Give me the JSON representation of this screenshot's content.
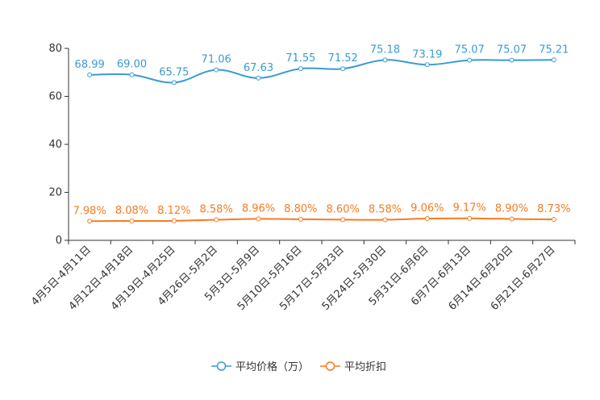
{
  "chart_data": {
    "type": "line",
    "title": "",
    "xlabel": "",
    "ylabel": "",
    "ylim": [
      0,
      80
    ],
    "yticks": [
      0,
      20,
      40,
      60,
      80
    ],
    "grid": false,
    "legend_position": "bottom-center",
    "categories": [
      "4月5日-4月11日",
      "4月12日-4月18日",
      "4月19日-4月25日",
      "4月26日-5月2日",
      "5月3日-5月9日",
      "5月10日-5月16日",
      "5月17日-5月23日",
      "5月24日-5月30日",
      "5月31日-6月6日",
      "6月7日-6月13日",
      "6月14日-6月20日",
      "6月21日-6月27日"
    ],
    "series": [
      {
        "name": "平均价格（万）",
        "color": "#3a9bd2",
        "values": [
          68.99,
          69.0,
          65.75,
          71.06,
          67.63,
          71.55,
          71.52,
          75.18,
          73.19,
          75.07,
          75.07,
          75.21
        ],
        "labels": [
          "68.99",
          "69.00",
          "65.75",
          "71.06",
          "67.63",
          "71.55",
          "71.52",
          "75.18",
          "73.19",
          "75.07",
          "75.07",
          "75.21"
        ]
      },
      {
        "name": "平均折扣",
        "color": "#f97a1f",
        "values": [
          7.98,
          8.08,
          8.12,
          8.58,
          8.96,
          8.8,
          8.6,
          8.58,
          9.06,
          9.17,
          8.9,
          8.73
        ],
        "labels": [
          "7.98%",
          "8.08%",
          "8.12%",
          "8.58%",
          "8.96%",
          "8.80%",
          "8.60%",
          "8.58%",
          "9.06%",
          "9.17%",
          "8.90%",
          "8.73%"
        ]
      }
    ]
  }
}
